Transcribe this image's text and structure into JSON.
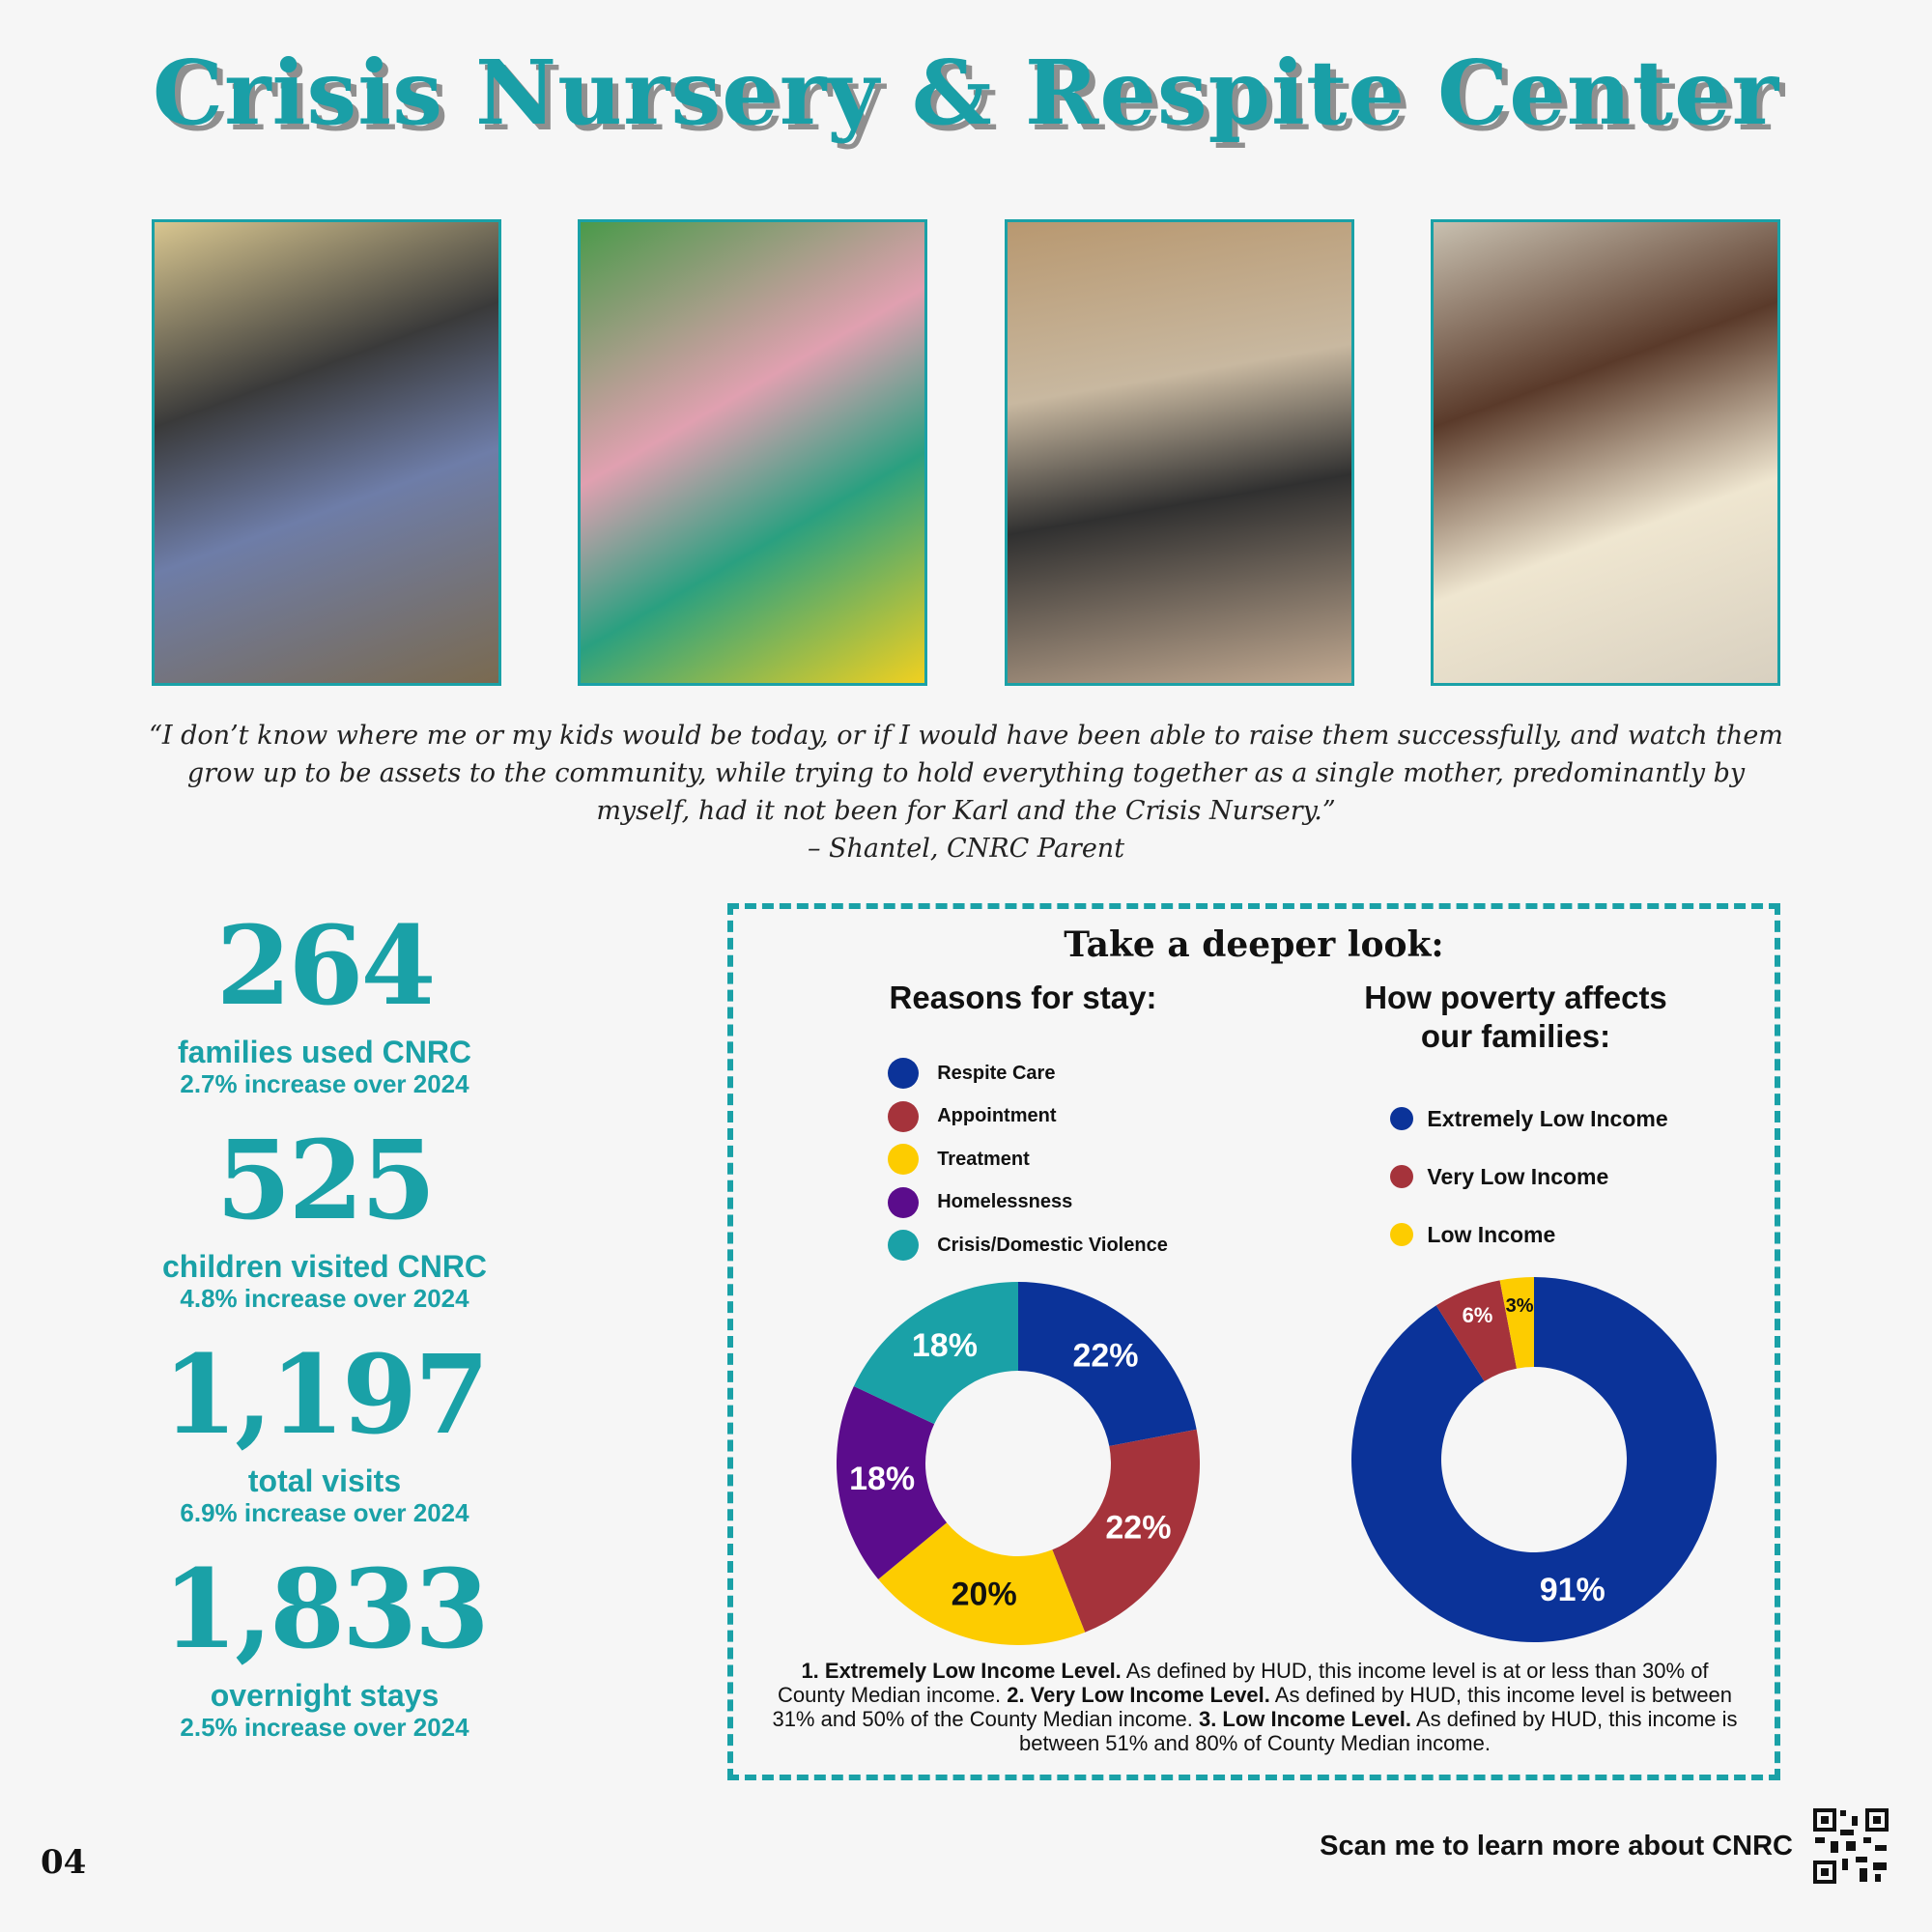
{
  "title": "Crisis Nursery & Respite Center",
  "quote": "“I don’t know where me or my kids would be today, or if I would have been able to raise them successfully, and watch them grow up to be assets to the community, while trying to hold everything together as a single mother, predominantly by myself, had it not been for Karl and the Crisis Nursery.”",
  "quote_attribution": "– Shantel, CNRC Parent",
  "stats": [
    {
      "number": "264",
      "label": "families used CNRC",
      "change": "2.7% increase over 2024"
    },
    {
      "number": "525",
      "label": "children visited CNRC",
      "change": "4.8% increase over 2024"
    },
    {
      "number": "1,197",
      "label": "total visits",
      "change": "6.9% increase over 2024"
    },
    {
      "number": "1,833",
      "label": "overnight stays",
      "change": "2.5% increase over 2024"
    }
  ],
  "panel_title": "Take a deeper look:",
  "chart_data": [
    {
      "type": "pie",
      "title": "Reasons for stay:",
      "categories": [
        "Respite Care",
        "Appointment",
        "Treatment",
        "Homelessness",
        "Crisis/Domestic Violence"
      ],
      "values": [
        22,
        22,
        20,
        18,
        18
      ],
      "value_labels": [
        "22%",
        "22%",
        "20%",
        "18%",
        "18%"
      ],
      "colors": [
        "#0b3399",
        "#a5333b",
        "#fdcc00",
        "#5b0c8c",
        "#1aa1a7"
      ]
    },
    {
      "type": "pie",
      "title": "How poverty affects our families:",
      "categories": [
        "Extremely Low Income",
        "Very Low Income",
        "Low Income"
      ],
      "values": [
        91,
        6,
        3
      ],
      "value_labels": [
        "91%",
        "6%",
        "3%"
      ],
      "colors": [
        "#0b3399",
        "#a5333b",
        "#fdcc00"
      ]
    }
  ],
  "footnote": [
    {
      "term": "1. Extremely Low Income Level.",
      "text": "As defined by HUD, this income level is at or less than 30% of County Median income."
    },
    {
      "term": "2. Very Low Income Level.",
      "text": "As defined by HUD, this income level is between 31% and 50% of the County Median income."
    },
    {
      "term": "3. Low Income Level.",
      "text": "As defined by HUD, this income is between 51% and 80% of County Median income."
    }
  ],
  "page_number": "04",
  "qr_caption": "Scan me to learn more about CNRC"
}
